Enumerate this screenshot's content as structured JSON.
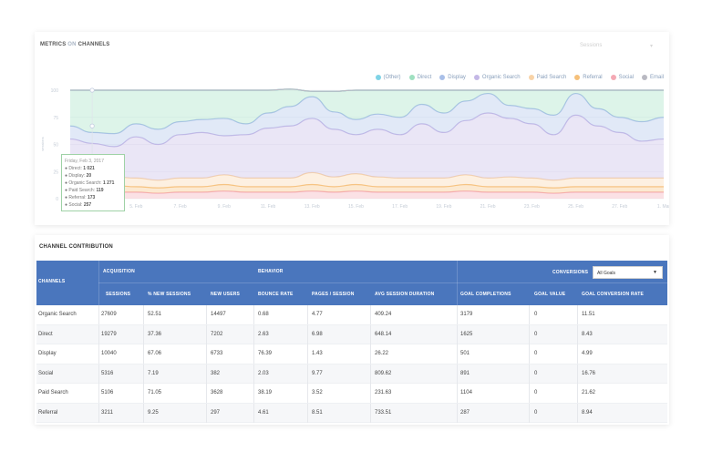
{
  "metrics_card": {
    "title_metrics": "METRICS",
    "title_on": "ON",
    "title_channels": "CHANNELS",
    "metric_select_value": "Sessions",
    "legend": [
      {
        "label": "(Other)",
        "color": "#7fd3e6"
      },
      {
        "label": "Direct",
        "color": "#9fe0c0"
      },
      {
        "label": "Display",
        "color": "#a9bfe8"
      },
      {
        "label": "Organic Search",
        "color": "#c4b8e6"
      },
      {
        "label": "Paid Search",
        "color": "#f8d3a8"
      },
      {
        "label": "Referral",
        "color": "#f6c07a"
      },
      {
        "label": "Social",
        "color": "#f4a9b4"
      },
      {
        "label": "Email",
        "color": "#b9b9c2"
      }
    ],
    "y_axis_label": "sessions",
    "y_ticks": [
      "100",
      "75",
      "50",
      "25",
      "0"
    ],
    "x_ticks": [
      "3. Feb",
      "5. Feb",
      "7. Feb",
      "9. Feb",
      "11. Feb",
      "13. Feb",
      "15. Feb",
      "17. Feb",
      "19. Feb",
      "21. Feb",
      "23. Feb",
      "25. Feb",
      "27. Feb",
      "1. Mar"
    ],
    "tooltip": {
      "date": "Friday, Feb 3, 2017",
      "lines": [
        {
          "label": "Direct:",
          "value": "1 021"
        },
        {
          "label": "Display:",
          "value": "20"
        },
        {
          "label": "Organic Search:",
          "value": "1 271"
        },
        {
          "label": "Paid Search:",
          "value": "119"
        },
        {
          "label": "Referral:",
          "value": "173"
        },
        {
          "label": "Social:",
          "value": "257"
        }
      ]
    }
  },
  "chart_data": {
    "type": "area",
    "ylim": [
      0,
      100
    ],
    "x": [
      "2. Feb",
      "3. Feb",
      "4. Feb",
      "5. Feb",
      "6. Feb",
      "7. Feb",
      "8. Feb",
      "9. Feb",
      "10. Feb",
      "11. Feb",
      "12. Feb",
      "13. Feb",
      "14. Feb",
      "15. Feb",
      "16. Feb",
      "17. Feb",
      "18. Feb",
      "19. Feb",
      "20. Feb",
      "21. Feb",
      "22. Feb",
      "23. Feb",
      "24. Feb",
      "25. Feb",
      "26. Feb",
      "27. Feb",
      "28. Feb",
      "1. Mar"
    ],
    "ylabel": "sessions",
    "series": [
      {
        "name": "Social",
        "values": [
          6,
          7,
          6,
          6,
          5,
          6,
          6,
          7,
          6,
          6,
          6,
          7,
          6,
          7,
          6,
          6,
          6,
          6,
          7,
          6,
          6,
          6,
          5,
          6,
          6,
          6,
          6,
          6
        ]
      },
      {
        "name": "Referral",
        "values": [
          5,
          5,
          6,
          5,
          5,
          5,
          5,
          6,
          5,
          5,
          5,
          6,
          5,
          6,
          5,
          5,
          5,
          5,
          6,
          5,
          5,
          5,
          5,
          5,
          5,
          5,
          5,
          5
        ]
      },
      {
        "name": "Paid Search",
        "values": [
          8,
          7,
          8,
          8,
          7,
          8,
          8,
          9,
          8,
          8,
          8,
          11,
          9,
          10,
          9,
          8,
          8,
          8,
          9,
          8,
          9,
          8,
          7,
          8,
          8,
          8,
          8,
          8
        ]
      },
      {
        "name": "Organic Search",
        "values": [
          36,
          32,
          28,
          38,
          33,
          40,
          42,
          36,
          40,
          46,
          48,
          50,
          44,
          36,
          44,
          40,
          50,
          42,
          50,
          60,
          54,
          50,
          42,
          58,
          48,
          42,
          34,
          36
        ]
      },
      {
        "name": "Display",
        "values": [
          12,
          10,
          12,
          12,
          14,
          12,
          12,
          16,
          10,
          14,
          18,
          20,
          16,
          14,
          14,
          16,
          18,
          18,
          18,
          18,
          12,
          14,
          18,
          20,
          16,
          14,
          18,
          20
        ]
      },
      {
        "name": "Direct",
        "values": [
          33,
          39,
          40,
          31,
          36,
          29,
          27,
          26,
          31,
          21,
          16,
          5,
          19,
          27,
          22,
          25,
          13,
          21,
          10,
          3,
          14,
          17,
          23,
          3,
          17,
          25,
          29,
          25
        ]
      },
      {
        "name": "(Other)",
        "values": [
          0,
          0,
          0,
          0,
          0,
          0,
          0,
          0,
          0,
          0,
          0,
          0,
          0,
          0,
          0,
          0,
          0,
          0,
          0,
          0,
          0,
          0,
          0,
          0,
          0,
          0,
          0,
          0
        ]
      },
      {
        "name": "Email",
        "values": [
          0,
          0,
          0,
          0,
          0,
          0,
          0,
          0,
          0,
          0,
          0,
          0,
          0,
          0,
          0,
          0,
          0,
          0,
          0,
          0,
          0,
          0,
          0,
          0,
          0,
          0,
          0,
          0
        ]
      }
    ]
  },
  "contribution_card": {
    "title": "CHANNEL CONTRIBUTION",
    "goals_select_value": "All Goals",
    "groups": {
      "channels": "CHANNELS",
      "acquisition": "ACQUISITION",
      "behavior": "BEHAVIOR",
      "conversions": "CONVERSIONS"
    },
    "columns": [
      "SESSIONS",
      "% NEW SESSIONS",
      "NEW USERS",
      "BOUNCE RATE",
      "PAGES / SESSION",
      "AVG SESSION DURATION",
      "GOAL COMPLETIONS",
      "GOAL VALUE",
      "GOAL CONVERSION RATE"
    ],
    "rows": [
      [
        "Organic Search",
        "27609",
        "52.51",
        "14497",
        "0.68",
        "4.77",
        "409.24",
        "3179",
        "0",
        "11.51"
      ],
      [
        "Direct",
        "19279",
        "37.36",
        "7202",
        "2.63",
        "6.98",
        "648.14",
        "1625",
        "0",
        "8.43"
      ],
      [
        "Display",
        "10040",
        "67.06",
        "6733",
        "76.39",
        "1.43",
        "26.22",
        "501",
        "0",
        "4.99"
      ],
      [
        "Social",
        "5316",
        "7.19",
        "382",
        "2.03",
        "9.77",
        "809.62",
        "891",
        "0",
        "16.76"
      ],
      [
        "Paid Search",
        "5106",
        "71.05",
        "3628",
        "38.19",
        "3.52",
        "231.63",
        "1104",
        "0",
        "21.62"
      ],
      [
        "Referral",
        "3211",
        "9.25",
        "297",
        "4.61",
        "8.51",
        "733.51",
        "287",
        "0",
        "8.94"
      ]
    ]
  }
}
